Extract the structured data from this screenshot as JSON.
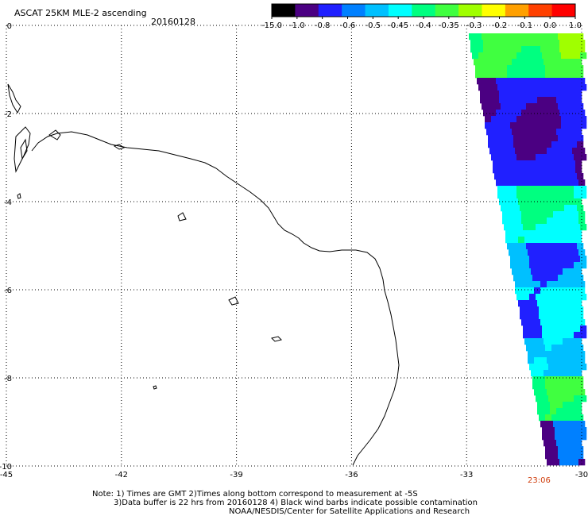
{
  "header": {
    "product": "ASCAT 25KM MLE-2 ascending",
    "date": "20160128"
  },
  "colorbar": {
    "labels": [
      "-15.0",
      "-1.0",
      "-0.8",
      "-0.6",
      "-0.5",
      "-0.45",
      "-0.4",
      "-0.35",
      "-0.3",
      "-0.2",
      "-0.1",
      "0.0",
      "1.0"
    ],
    "colors": [
      "#000000",
      "#4b0082",
      "#2020ff",
      "#0080ff",
      "#00c0ff",
      "#00ffff",
      "#00ff80",
      "#40ff40",
      "#a0ff00",
      "#ffff00",
      "#ffa000",
      "#ff4000",
      "#ff0000"
    ]
  },
  "map": {
    "lon_labels": [
      "-45",
      "-42",
      "-39",
      "-36",
      "-33",
      "-30"
    ],
    "lat_labels": [
      "0",
      "-2",
      "-4",
      "-6",
      "-8",
      "-10"
    ],
    "lon_range": [
      -45,
      -30
    ],
    "lat_range": [
      -10,
      0
    ],
    "grid": true
  },
  "timestamp": "23:06",
  "notes": {
    "line1": "Note: 1) Times are GMT 2)Times along bottom correspond to measurement at -5S",
    "line2": "3)Data buffer is 22 hrs from 20160128 4) Black wind barbs indicate possible contamination",
    "line3": "NOAA/NESDIS/Center for Satellite Applications and Research"
  }
}
